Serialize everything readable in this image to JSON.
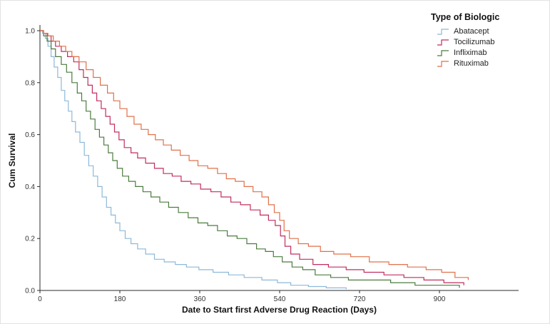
{
  "page": {
    "background": "#ffffff",
    "axis_color": "#2b2b2b",
    "tick_label_color": "#333333"
  },
  "chart_data": {
    "type": "line",
    "subtype": "kaplan-meier-step",
    "title": "",
    "xlabel": "Date to Start first Adverse Drug Reaction (Days)",
    "ylabel": "Cum Survival",
    "legend_title": "Type of Biologic",
    "legend_position": "top-right",
    "grid": false,
    "xlim": [
      0,
      1080
    ],
    "ylim": [
      0.0,
      1.0
    ],
    "x_ticks": [
      0,
      180,
      360,
      540,
      720,
      900
    ],
    "y_ticks": [
      "0.0",
      "0.2",
      "0.4",
      "0.6",
      "0.8",
      "1.0"
    ],
    "series": [
      {
        "name": "Abatacept",
        "color": "#8db9d9",
        "points": [
          [
            0,
            1.0
          ],
          [
            6,
            0.99
          ],
          [
            12,
            0.97
          ],
          [
            18,
            0.94
          ],
          [
            25,
            0.9
          ],
          [
            32,
            0.86
          ],
          [
            40,
            0.82
          ],
          [
            48,
            0.77
          ],
          [
            56,
            0.73
          ],
          [
            64,
            0.69
          ],
          [
            72,
            0.65
          ],
          [
            80,
            0.61
          ],
          [
            90,
            0.57
          ],
          [
            100,
            0.52
          ],
          [
            110,
            0.48
          ],
          [
            120,
            0.44
          ],
          [
            130,
            0.4
          ],
          [
            140,
            0.36
          ],
          [
            150,
            0.32
          ],
          [
            160,
            0.29
          ],
          [
            170,
            0.26
          ],
          [
            180,
            0.23
          ],
          [
            192,
            0.2
          ],
          [
            205,
            0.18
          ],
          [
            220,
            0.16
          ],
          [
            238,
            0.14
          ],
          [
            258,
            0.12
          ],
          [
            280,
            0.11
          ],
          [
            305,
            0.1
          ],
          [
            330,
            0.09
          ],
          [
            358,
            0.08
          ],
          [
            390,
            0.07
          ],
          [
            425,
            0.06
          ],
          [
            460,
            0.05
          ],
          [
            500,
            0.04
          ],
          [
            535,
            0.03
          ],
          [
            565,
            0.02
          ],
          [
            605,
            0.015
          ],
          [
            645,
            0.01
          ],
          [
            690,
            0.005
          ]
        ]
      },
      {
        "name": "Tocilizumab",
        "color": "#c02e5e",
        "points": [
          [
            0,
            1.0
          ],
          [
            8,
            0.99
          ],
          [
            16,
            0.98
          ],
          [
            25,
            0.96
          ],
          [
            35,
            0.94
          ],
          [
            48,
            0.92
          ],
          [
            62,
            0.9
          ],
          [
            76,
            0.88
          ],
          [
            88,
            0.85
          ],
          [
            98,
            0.82
          ],
          [
            108,
            0.79
          ],
          [
            118,
            0.76
          ],
          [
            128,
            0.73
          ],
          [
            138,
            0.7
          ],
          [
            148,
            0.67
          ],
          [
            158,
            0.64
          ],
          [
            168,
            0.61
          ],
          [
            178,
            0.58
          ],
          [
            190,
            0.55
          ],
          [
            205,
            0.53
          ],
          [
            220,
            0.51
          ],
          [
            238,
            0.49
          ],
          [
            258,
            0.47
          ],
          [
            278,
            0.45
          ],
          [
            298,
            0.44
          ],
          [
            318,
            0.42
          ],
          [
            340,
            0.41
          ],
          [
            362,
            0.39
          ],
          [
            385,
            0.38
          ],
          [
            408,
            0.36
          ],
          [
            430,
            0.34
          ],
          [
            452,
            0.33
          ],
          [
            474,
            0.31
          ],
          [
            496,
            0.29
          ],
          [
            515,
            0.27
          ],
          [
            530,
            0.25
          ],
          [
            542,
            0.21
          ],
          [
            552,
            0.17
          ],
          [
            565,
            0.14
          ],
          [
            585,
            0.12
          ],
          [
            615,
            0.1
          ],
          [
            650,
            0.09
          ],
          [
            690,
            0.08
          ],
          [
            730,
            0.07
          ],
          [
            775,
            0.06
          ],
          [
            820,
            0.05
          ],
          [
            865,
            0.04
          ],
          [
            910,
            0.03
          ],
          [
            955,
            0.02
          ]
        ]
      },
      {
        "name": "Infliximab",
        "color": "#4c7b3f",
        "points": [
          [
            0,
            1.0
          ],
          [
            8,
            0.98
          ],
          [
            16,
            0.96
          ],
          [
            25,
            0.93
          ],
          [
            35,
            0.9
          ],
          [
            48,
            0.87
          ],
          [
            60,
            0.84
          ],
          [
            72,
            0.8
          ],
          [
            84,
            0.76
          ],
          [
            94,
            0.73
          ],
          [
            104,
            0.69
          ],
          [
            114,
            0.66
          ],
          [
            124,
            0.62
          ],
          [
            134,
            0.59
          ],
          [
            144,
            0.56
          ],
          [
            154,
            0.53
          ],
          [
            164,
            0.5
          ],
          [
            174,
            0.47
          ],
          [
            186,
            0.44
          ],
          [
            200,
            0.42
          ],
          [
            215,
            0.4
          ],
          [
            232,
            0.38
          ],
          [
            250,
            0.36
          ],
          [
            270,
            0.34
          ],
          [
            290,
            0.32
          ],
          [
            312,
            0.3
          ],
          [
            334,
            0.28
          ],
          [
            356,
            0.26
          ],
          [
            378,
            0.25
          ],
          [
            400,
            0.23
          ],
          [
            422,
            0.21
          ],
          [
            444,
            0.2
          ],
          [
            466,
            0.18
          ],
          [
            488,
            0.16
          ],
          [
            508,
            0.15
          ],
          [
            526,
            0.13
          ],
          [
            546,
            0.11
          ],
          [
            568,
            0.09
          ],
          [
            592,
            0.08
          ],
          [
            620,
            0.06
          ],
          [
            655,
            0.05
          ],
          [
            695,
            0.04
          ],
          [
            740,
            0.04
          ],
          [
            790,
            0.03
          ],
          [
            845,
            0.02
          ],
          [
            905,
            0.02
          ],
          [
            945,
            0.01
          ]
        ]
      },
      {
        "name": "Rituximab",
        "color": "#e0714b",
        "points": [
          [
            0,
            1.0
          ],
          [
            8,
            0.99
          ],
          [
            18,
            0.98
          ],
          [
            30,
            0.96
          ],
          [
            44,
            0.94
          ],
          [
            58,
            0.92
          ],
          [
            72,
            0.9
          ],
          [
            88,
            0.88
          ],
          [
            104,
            0.85
          ],
          [
            120,
            0.82
          ],
          [
            136,
            0.79
          ],
          [
            152,
            0.76
          ],
          [
            166,
            0.73
          ],
          [
            180,
            0.7
          ],
          [
            196,
            0.67
          ],
          [
            212,
            0.64
          ],
          [
            228,
            0.62
          ],
          [
            244,
            0.6
          ],
          [
            260,
            0.58
          ],
          [
            278,
            0.56
          ],
          [
            296,
            0.54
          ],
          [
            316,
            0.52
          ],
          [
            336,
            0.5
          ],
          [
            356,
            0.48
          ],
          [
            378,
            0.47
          ],
          [
            400,
            0.45
          ],
          [
            420,
            0.43
          ],
          [
            440,
            0.42
          ],
          [
            460,
            0.4
          ],
          [
            480,
            0.38
          ],
          [
            500,
            0.36
          ],
          [
            515,
            0.33
          ],
          [
            528,
            0.3
          ],
          [
            540,
            0.27
          ],
          [
            550,
            0.23
          ],
          [
            562,
            0.2
          ],
          [
            582,
            0.18
          ],
          [
            605,
            0.17
          ],
          [
            632,
            0.15
          ],
          [
            662,
            0.14
          ],
          [
            700,
            0.13
          ],
          [
            742,
            0.11
          ],
          [
            786,
            0.1
          ],
          [
            828,
            0.09
          ],
          [
            870,
            0.08
          ],
          [
            905,
            0.07
          ],
          [
            935,
            0.05
          ],
          [
            965,
            0.04
          ]
        ]
      }
    ]
  }
}
